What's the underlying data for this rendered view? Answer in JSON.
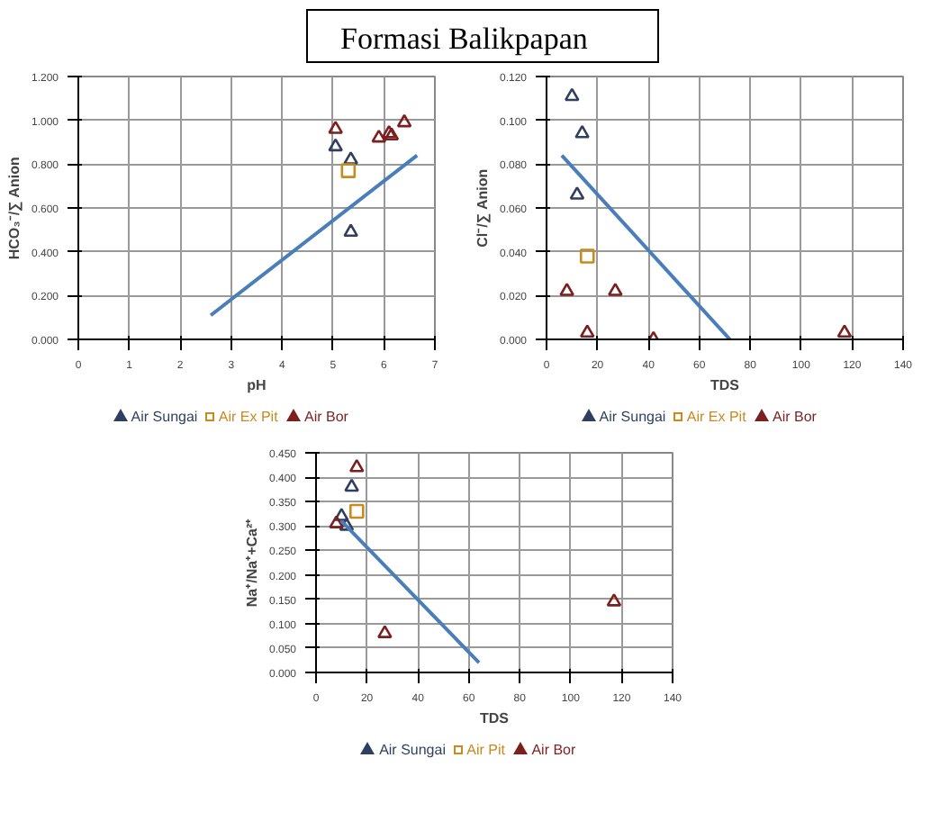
{
  "chart_data": [
    {
      "type": "other",
      "title": "Formasi Balikpapan"
    },
    {
      "type": "scatter",
      "xlabel": "pH",
      "ylabel": "HCO₃⁻/∑ Anion",
      "xlim": [
        0,
        7
      ],
      "xticks": [
        0,
        1,
        2,
        3,
        4,
        5,
        6,
        7
      ],
      "ylim": [
        0,
        1.2
      ],
      "yticks": [
        {
          "value": 0,
          "label": "0.000"
        },
        {
          "value": 0.2,
          "label": "0.200"
        },
        {
          "value": 0.4,
          "label": "0.400"
        },
        {
          "value": 0.6,
          "label": "0.600"
        },
        {
          "value": 0.8,
          "label": "0.800"
        },
        {
          "value": 1.0,
          "label": "1.000"
        },
        {
          "value": 1.2,
          "label": "1.200"
        }
      ],
      "grid": true,
      "legend": "bottom",
      "series": [
        {
          "name": "Air Sungai",
          "color": "#2f3f5f",
          "marker": "triangle",
          "x": [
            5.05,
            5.35,
            5.35
          ],
          "values": [
            0.88,
            0.82,
            0.49
          ]
        },
        {
          "name": "Air Ex Pit",
          "color": "#c98a1e",
          "marker": "square",
          "x": [
            5.3
          ],
          "values": [
            0.77
          ]
        },
        {
          "name": "Air Bor",
          "color": "#7b1f1f",
          "marker": "triangle",
          "x": [
            5.05,
            5.9,
            6.1,
            6.15,
            6.4
          ],
          "values": [
            0.96,
            0.92,
            0.94,
            0.93,
            0.99
          ]
        },
        {
          "type": "line",
          "color": "#4a7ebb",
          "marker": "none",
          "x": [
            2.6,
            6.65
          ],
          "values": [
            0.11,
            0.84
          ]
        }
      ]
    },
    {
      "type": "scatter",
      "xlabel": "TDS",
      "ylabel": "Cl⁻/∑ Anion",
      "xlim": [
        0,
        140
      ],
      "xticks": [
        0,
        20,
        40,
        60,
        80,
        100,
        120,
        140
      ],
      "ylim": [
        0,
        0.12
      ],
      "yticks": [
        {
          "value": 0,
          "label": "0.000"
        },
        {
          "value": 0.02,
          "label": "0.020"
        },
        {
          "value": 0.04,
          "label": "0.040"
        },
        {
          "value": 0.06,
          "label": "0.060"
        },
        {
          "value": 0.08,
          "label": "0.080"
        },
        {
          "value": 0.1,
          "label": "0.100"
        },
        {
          "value": 0.12,
          "label": "0.120"
        }
      ],
      "grid": true,
      "legend": "bottom",
      "series": [
        {
          "name": "Air Sungai",
          "color": "#2f3f5f",
          "marker": "triangle",
          "x": [
            10,
            14,
            12
          ],
          "values": [
            0.111,
            0.094,
            0.066
          ]
        },
        {
          "name": "Air Ex Pit",
          "color": "#c98a1e",
          "marker": "square",
          "x": [
            16
          ],
          "values": [
            0.038
          ]
        },
        {
          "name": "Air Bor",
          "color": "#7b1f1f",
          "marker": "triangle",
          "x": [
            8,
            16,
            27,
            42,
            117
          ],
          "values": [
            0.022,
            0.003,
            0.022,
            0.0,
            0.003
          ]
        },
        {
          "type": "line",
          "color": "#4a7ebb",
          "marker": "none",
          "x": [
            6,
            72
          ],
          "values": [
            0.084,
            0.0
          ]
        }
      ]
    },
    {
      "type": "scatter",
      "xlabel": "TDS",
      "ylabel": "Na⁺/Na⁺+Ca²⁺",
      "xlim": [
        0,
        140
      ],
      "xticks": [
        0,
        20,
        40,
        60,
        80,
        100,
        120,
        140
      ],
      "ylim": [
        0,
        0.45
      ],
      "yticks": [
        {
          "value": 0,
          "label": "0.000"
        },
        {
          "value": 0.05,
          "label": "0.050"
        },
        {
          "value": 0.1,
          "label": "0.100"
        },
        {
          "value": 0.15,
          "label": "0.150"
        },
        {
          "value": 0.2,
          "label": "0.200"
        },
        {
          "value": 0.25,
          "label": "0.250"
        },
        {
          "value": 0.3,
          "label": "0.300"
        },
        {
          "value": 0.35,
          "label": "0.350"
        },
        {
          "value": 0.4,
          "label": "0.400"
        },
        {
          "value": 0.45,
          "label": "0.450"
        }
      ],
      "grid": true,
      "legend": "bottom",
      "series": [
        {
          "name": "Air Sungai",
          "color": "#2f3f5f",
          "marker": "triangle",
          "x": [
            10,
            14,
            12
          ],
          "values": [
            0.32,
            0.38,
            0.3
          ]
        },
        {
          "name": "Air Pit",
          "color": "#c98a1e",
          "marker": "square",
          "x": [
            16
          ],
          "values": [
            0.33
          ]
        },
        {
          "name": "Air Bor",
          "color": "#7b1f1f",
          "marker": "triangle",
          "x": [
            16,
            8,
            27,
            117
          ],
          "values": [
            0.42,
            0.305,
            0.08,
            0.145
          ]
        },
        {
          "type": "line",
          "color": "#4a7ebb",
          "marker": "none",
          "x": [
            10,
            64
          ],
          "values": [
            0.31,
            0.02
          ]
        }
      ]
    }
  ]
}
